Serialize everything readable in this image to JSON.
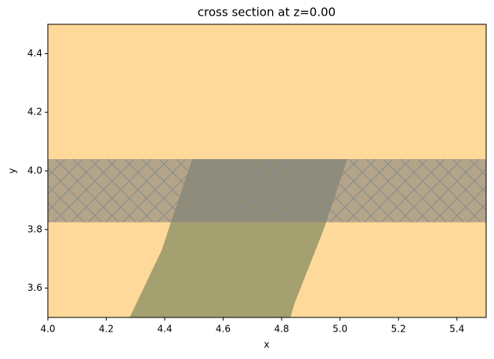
{
  "chart_data": {
    "type": "cross_section",
    "title": "cross section at z=0.00",
    "xlabel": "x",
    "ylabel": "y",
    "background": "#fed999",
    "xlim": [
      4.0,
      5.5
    ],
    "ylim": [
      3.5,
      4.5
    ],
    "xticks": [
      {
        "value": 4.0,
        "label": "4.0"
      },
      {
        "value": 4.2,
        "label": "4.2"
      },
      {
        "value": 4.4,
        "label": "4.4"
      },
      {
        "value": 4.6,
        "label": "4.6"
      },
      {
        "value": 4.8,
        "label": "4.8"
      },
      {
        "value": 5.0,
        "label": "5.0"
      },
      {
        "value": 5.2,
        "label": "5.2"
      },
      {
        "value": 5.4,
        "label": "5.4"
      }
    ],
    "yticks": [
      {
        "value": 3.6,
        "label": "3.6"
      },
      {
        "value": 3.8,
        "label": "3.8"
      },
      {
        "value": 4.0,
        "label": "4.0"
      },
      {
        "value": 4.2,
        "label": "4.2"
      },
      {
        "value": 4.4,
        "label": "4.4"
      }
    ],
    "shapes": [
      {
        "x": [
          4.28,
          4.39,
          4.413,
          4.494,
          5.025,
          4.944,
          4.845,
          4.83
        ],
        "y": [
          3.5,
          3.73,
          3.8,
          4.04,
          4.04,
          3.8,
          3.55,
          3.5
        ],
        "color": "#a5a06f"
      },
      {
        "x": [
          4.0,
          5.5,
          5.5,
          4.0
        ],
        "y": [
          3.825,
          3.825,
          4.04,
          4.04
        ],
        "color": "#808080",
        "opacity": 0.6,
        "hatch": true
      }
    ]
  }
}
